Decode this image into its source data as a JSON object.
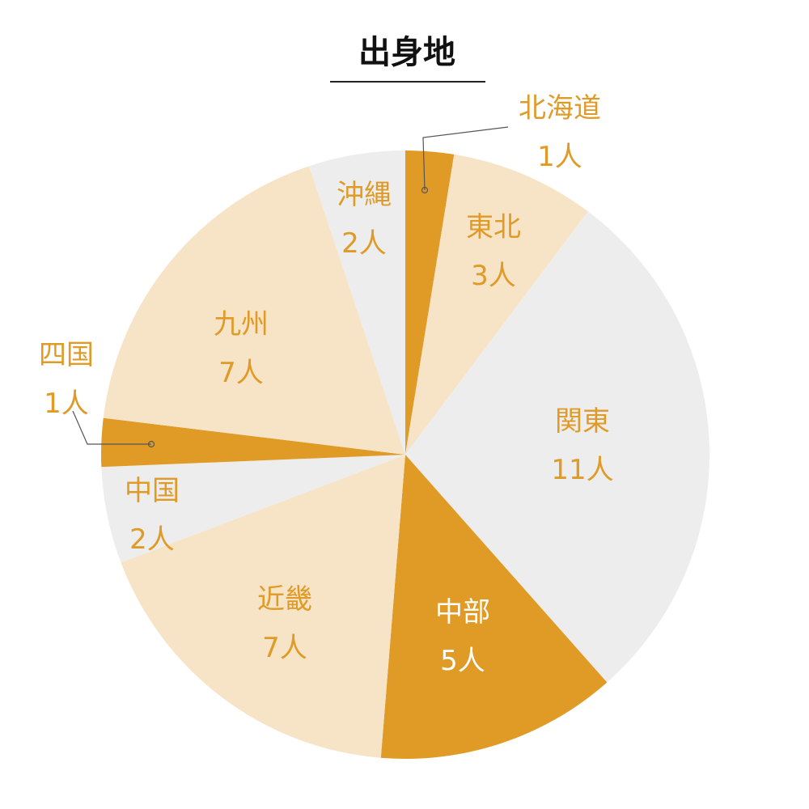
{
  "chart_data": {
    "type": "pie",
    "title": "出身地",
    "unit": "人",
    "start": "top",
    "direction": "clockwise",
    "categories": [
      "北海道",
      "東北",
      "関東",
      "中部",
      "近畿",
      "中国",
      "四国",
      "九州",
      "沖縄"
    ],
    "values": [
      1,
      3,
      11,
      5,
      7,
      2,
      1,
      7,
      2
    ],
    "value_labels": [
      "1人",
      "3人",
      "11人",
      "5人",
      "7人",
      "2人",
      "1人",
      "7人",
      "2人"
    ],
    "colors": [
      "#E09A26",
      "#F7E4C7",
      "#EDEDED",
      "#E09A26",
      "#F7E4C7",
      "#EDEDED",
      "#E09A26",
      "#F7E4C7",
      "#EDEDED"
    ],
    "label_colors": [
      "#E09A26",
      "#E09A26",
      "#E09A26",
      "#FFFFFF",
      "#E09A26",
      "#E09A26",
      "#E09A26",
      "#E09A26",
      "#E09A26"
    ]
  }
}
